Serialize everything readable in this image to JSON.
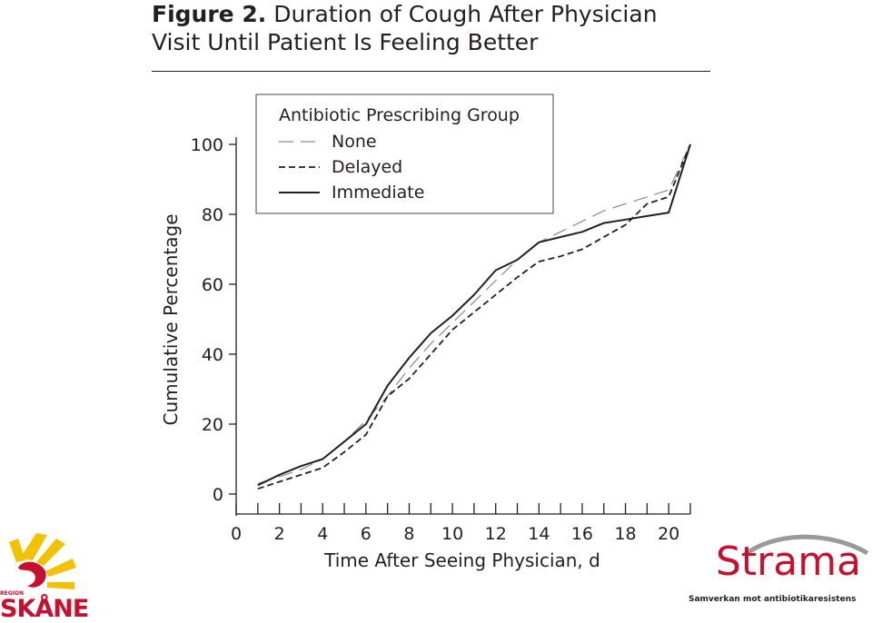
{
  "figure": {
    "title_lead": "Figure 2.",
    "title_line1_rest": "Duration of Cough After Physician",
    "title_line2": "Visit Until Patient Is Feeling Better"
  },
  "chart_data": {
    "type": "line",
    "xlabel": "Time After Seeing Physician, d",
    "ylabel": "Cumulative Percentage",
    "xlim": [
      0,
      21
    ],
    "ylim": [
      0,
      100
    ],
    "xticks_major": [
      0,
      2,
      4,
      6,
      8,
      10,
      12,
      14,
      16,
      18,
      20
    ],
    "xticks_minor": [
      1,
      3,
      5,
      7,
      9,
      11,
      13,
      15,
      17,
      19,
      21
    ],
    "yticks": [
      0,
      20,
      40,
      60,
      80,
      100
    ],
    "grid": false,
    "legend": {
      "title": "Antibiotic Prescribing Group",
      "placement": "top-left"
    },
    "series": [
      {
        "name": "None",
        "style": "long-dash",
        "color": "#8a8a8a",
        "x": [
          1,
          2,
          3,
          4,
          5,
          6,
          7,
          8,
          9,
          10,
          11,
          12,
          13,
          14,
          15,
          16,
          17,
          18,
          19,
          20,
          21
        ],
        "y": [
          3,
          5,
          7,
          10,
          15,
          21,
          28,
          36,
          43,
          49,
          55,
          61,
          67,
          72,
          75,
          78,
          81,
          83,
          85,
          87,
          100
        ]
      },
      {
        "name": "Delayed",
        "style": "short-dash",
        "color": "#231f20",
        "x": [
          1,
          2,
          3,
          4,
          5,
          6,
          7,
          8,
          9,
          10,
          11,
          12,
          13,
          14,
          15,
          16,
          17,
          18,
          19,
          20,
          21
        ],
        "y": [
          1.5,
          3.5,
          5.5,
          7.5,
          12,
          17,
          28,
          33,
          40,
          47,
          52,
          57,
          62,
          66.5,
          68,
          70,
          73.5,
          77,
          83,
          85,
          100
        ]
      },
      {
        "name": "Immediate",
        "style": "solid",
        "color": "#231f20",
        "x": [
          1,
          2,
          3,
          4,
          5,
          6,
          7,
          8,
          9,
          10,
          11,
          12,
          13,
          14,
          15,
          16,
          17,
          18,
          19,
          20,
          21
        ],
        "y": [
          2.5,
          5.5,
          8,
          10,
          15,
          20,
          31,
          39,
          46,
          51,
          57,
          64,
          67,
          72,
          73.5,
          75,
          77.5,
          78.5,
          79.5,
          80.5,
          100
        ]
      }
    ]
  },
  "logos": {
    "left": {
      "name": "region-skane-logo",
      "small_text": "REGION",
      "word": "SKÅNE",
      "color": "#c8102e",
      "sun_color": "#f2c100"
    },
    "right": {
      "name": "strama-logo",
      "word": "Strama",
      "subtitle": "Samverkan mot antibiotikaresistens",
      "color": "#c8102e"
    }
  }
}
